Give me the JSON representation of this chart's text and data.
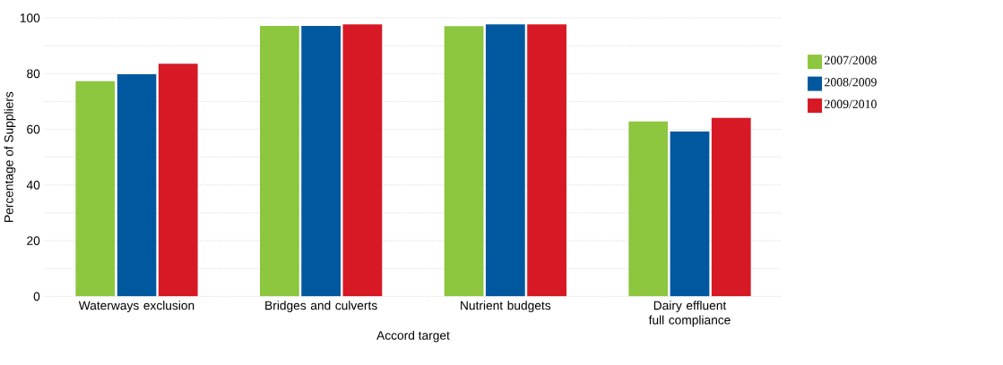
{
  "chart_data": {
    "type": "bar",
    "xlabel": "Accord target",
    "ylabel": "Percentage of Suppliers",
    "categories": [
      "Waterways exclusion",
      "Bridges and culverts",
      "Nutrient budgets",
      "Dairy effluent full compliance"
    ],
    "series": [
      {
        "name": "2007/2008",
        "color": "#8dc63f",
        "values": [
          77.3,
          97.1,
          97.0,
          62.8
        ]
      },
      {
        "name": "2008/2009",
        "color": "#00589f",
        "values": [
          79.8,
          97.1,
          97.7,
          59.2
        ]
      },
      {
        "name": "2009/2010",
        "color": "#d71925",
        "values": [
          83.5,
          97.7,
          97.7,
          64.1
        ]
      }
    ],
    "ylim": [
      0,
      100
    ],
    "yticks": [
      0,
      {
        "value": 10,
        "label": null
      },
      20,
      {
        "value": 30,
        "label": null
      },
      40,
      {
        "value": 50,
        "label": null
      },
      60,
      {
        "value": 70,
        "label": null
      },
      80,
      {
        "value": 90,
        "label": null
      },
      100
    ],
    "grid": "y",
    "legend": "right"
  }
}
